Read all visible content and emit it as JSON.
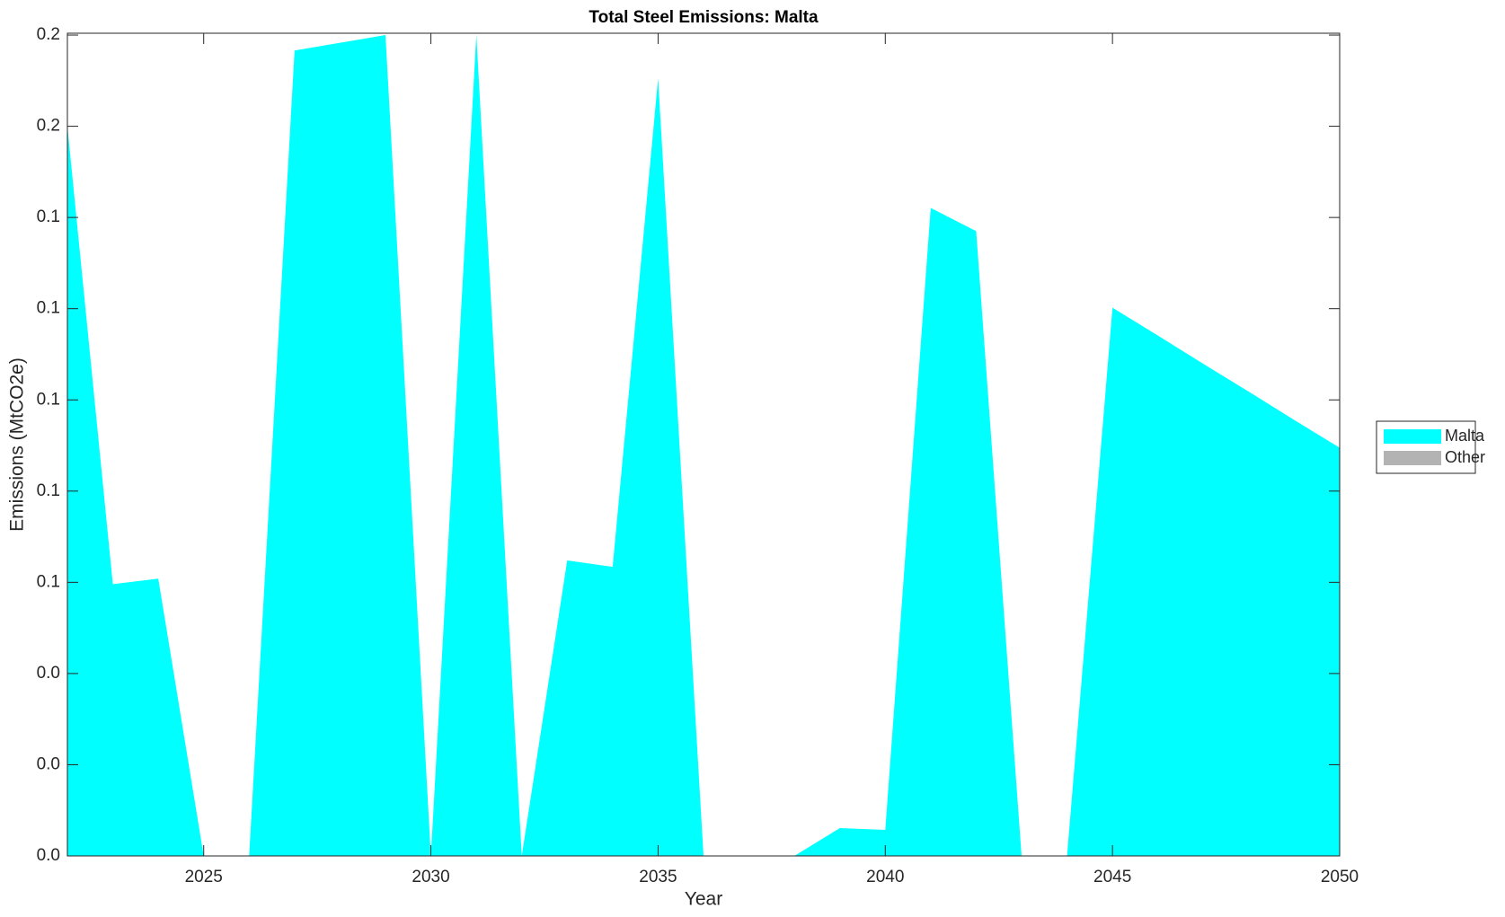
{
  "chart_data": {
    "type": "area",
    "title": "Total Steel Emissions: Malta",
    "xlabel": "Year",
    "ylabel": "Emissions (MtCO2e)",
    "x": [
      2022,
      2023,
      2024,
      2025,
      2026,
      2027,
      2028,
      2029,
      2030,
      2031,
      2032,
      2033,
      2034,
      2035,
      2036,
      2037,
      2038,
      2039,
      2040,
      2041,
      2042,
      2043,
      2044,
      2045,
      2046,
      2047,
      2048,
      2049,
      2050
    ],
    "series": [
      {
        "name": "Malta",
        "color": "#00ffff",
        "values": [
          0.16,
          0.0596,
          0.0608,
          0,
          0,
          0.1766,
          0.1783,
          0.18,
          0,
          0.18,
          0,
          0.0648,
          0.0634,
          0.1705,
          0,
          0,
          0,
          0.0061,
          0.0057,
          0.1421,
          0.137,
          0,
          0,
          0.1202,
          0.1141,
          0.1079,
          0.1018,
          0.0956,
          0.0895
        ]
      },
      {
        "name": "Other",
        "color": "#b3b3b3",
        "values": [
          0,
          0,
          0,
          0,
          0,
          0,
          0,
          0,
          0,
          0,
          0,
          0,
          0,
          0,
          0,
          0,
          0,
          0,
          0,
          0,
          0,
          0,
          0,
          0,
          0,
          0,
          0,
          0,
          0
        ]
      }
    ],
    "xlim": [
      2022,
      2050
    ],
    "xticks": [
      2025,
      2030,
      2035,
      2040,
      2045,
      2050
    ],
    "ylim": [
      0,
      0.1804
    ],
    "yticks": [
      {
        "value": 0,
        "label": "0.0"
      },
      {
        "value": 0.02,
        "label": "0.0"
      },
      {
        "value": 0.04,
        "label": "0.0"
      },
      {
        "value": 0.06,
        "label": "0.1"
      },
      {
        "value": 0.08,
        "label": "0.1"
      },
      {
        "value": 0.1,
        "label": "0.1"
      },
      {
        "value": 0.12,
        "label": "0.1"
      },
      {
        "value": 0.14,
        "label": "0.1"
      },
      {
        "value": 0.16,
        "label": "0.2"
      },
      {
        "value": 0.18,
        "label": "0.2"
      }
    ],
    "grid": false,
    "legend": "outside-right"
  }
}
